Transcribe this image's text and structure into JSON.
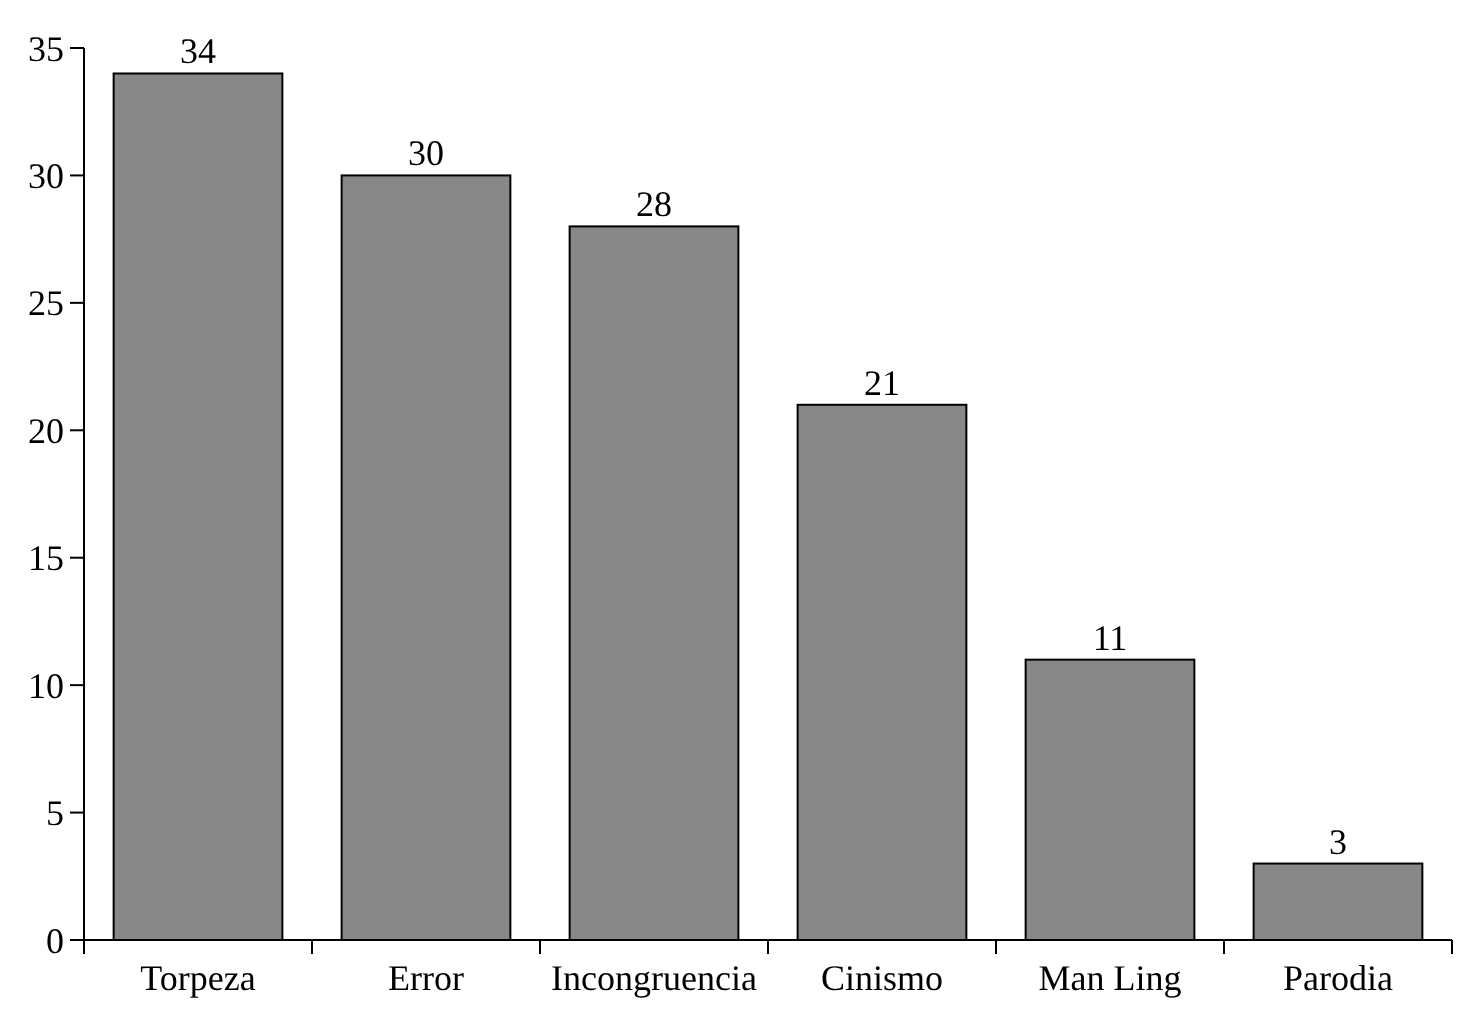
{
  "chart_data": {
    "type": "bar",
    "categories": [
      "Torpeza",
      "Error",
      "Incongruencia",
      "Cinismo",
      "Man Ling",
      "Parodia"
    ],
    "values": [
      34,
      30,
      28,
      21,
      11,
      3
    ],
    "color": "#888888",
    "ylim": [
      0,
      35
    ],
    "yticks": [
      0,
      5,
      10,
      15,
      20,
      25,
      30,
      35
    ],
    "grid": false,
    "data_labels": true
  }
}
